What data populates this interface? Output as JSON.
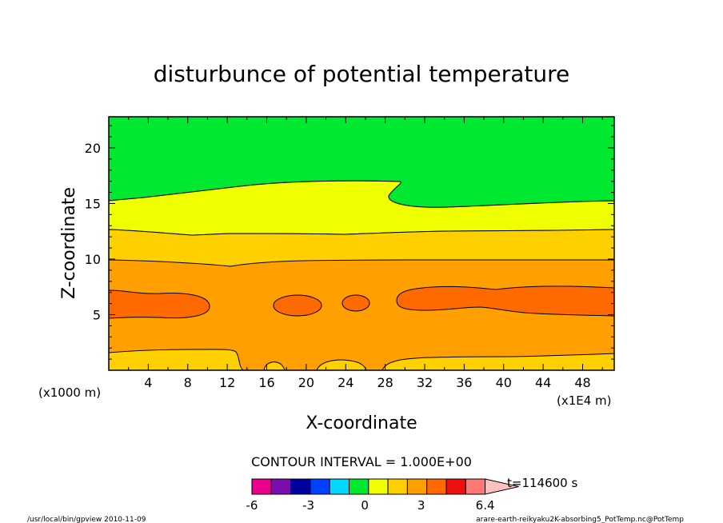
{
  "chart_data": {
    "type": "contour",
    "title": "disturbunce of potential temperature",
    "xlabel": "X-coordinate",
    "ylabel": "Z-coordinate",
    "xlim": [
      0,
      51.2
    ],
    "ylim": [
      0,
      22.8
    ],
    "x_ticks": [
      "4",
      "8",
      "12",
      "16",
      "20",
      "24",
      "28",
      "32",
      "36",
      "40",
      "44",
      "48"
    ],
    "y_ticks": [
      "5",
      "10",
      "15",
      "20"
    ],
    "x_unit": "(x1E4 m)",
    "y_unit": "(x1000 m)",
    "contour_interval": "CONTOUR INTERVAL = 1.000E+00",
    "time_label": "t=114600 s",
    "colorbar": {
      "colors": [
        "#e8008c",
        "#7a0dad",
        "#00009e",
        "#0040ff",
        "#00d8ff",
        "#00e830",
        "#f0ff00",
        "#ffd000",
        "#ffa000",
        "#ff6a00",
        "#ee1010",
        "#ff7878",
        "#ffc0c0"
      ],
      "tick_labels": [
        "-6",
        "-3",
        "0",
        "3",
        "6.4"
      ],
      "tick_values": [
        -6,
        -3,
        0,
        3,
        6.4
      ],
      "min": -6,
      "max": 6.4
    },
    "levels": [
      {
        "value": 0.5,
        "color": "#00e830",
        "description": "top region above ~15 km"
      },
      {
        "value": 1.5,
        "color": "#f0ff00",
        "description": "band ~12.5-17 km"
      },
      {
        "value": 2.5,
        "color": "#ffd000",
        "description": "band ~10-12.5 km and bottom layer"
      },
      {
        "value": 3.5,
        "color": "#ffa000",
        "description": "main band ~1.5-10 km"
      },
      {
        "value": 4.5,
        "color": "#ff6a00",
        "description": "patches ~5-7 km"
      }
    ],
    "footer_left": "/usr/local/bin/gpview  2010-11-09",
    "footer_right": "arare-earth-reikyaku2K-absorbing5_PotTemp.nc@PotTemp"
  }
}
